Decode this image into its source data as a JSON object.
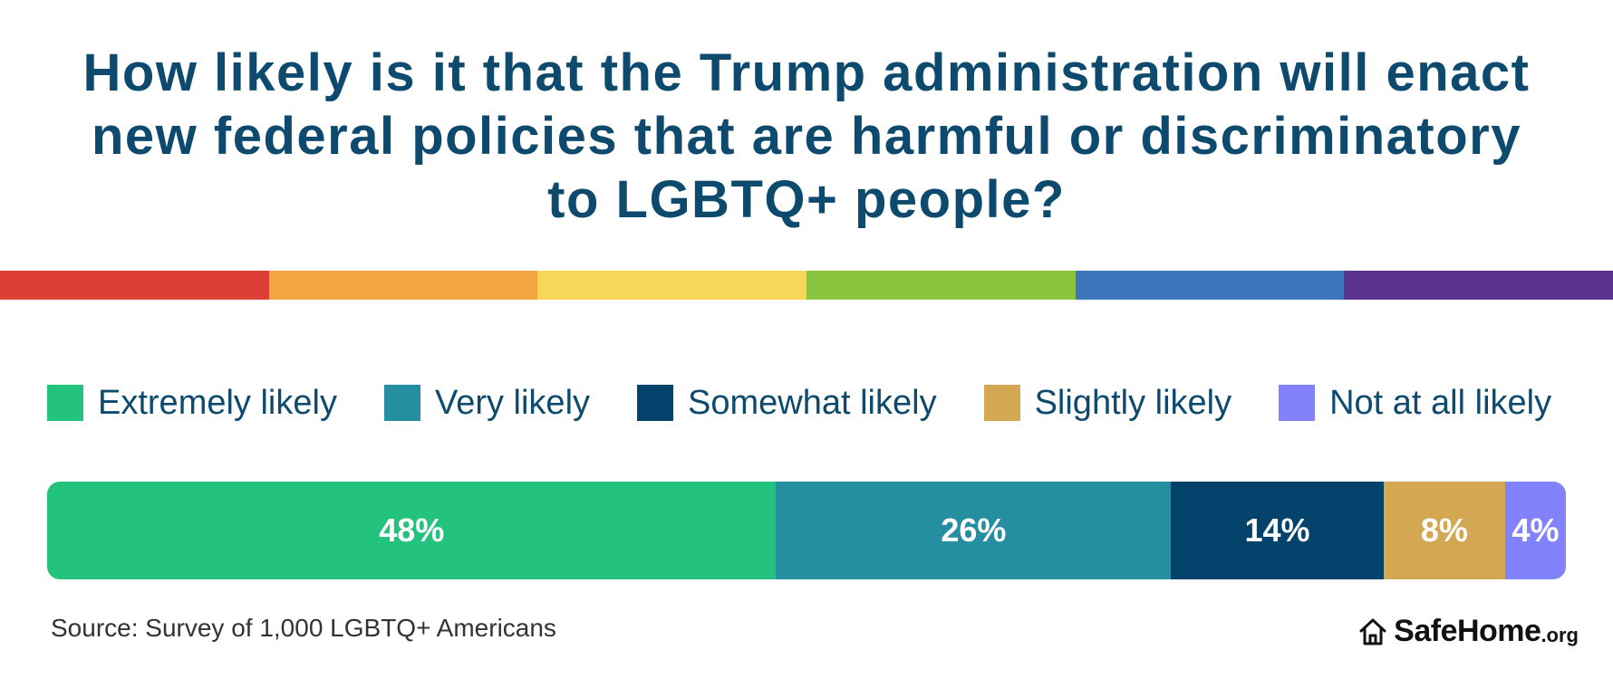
{
  "title_lines": [
    "How likely is it that the Trump administration will enact",
    "new federal policies that are harmful or discriminatory",
    "to LGBTQ+ people?"
  ],
  "rainbow_colors": [
    "#dd3f37",
    "#f2a541",
    "#f7d65a",
    "#8bc43f",
    "#3d76ba",
    "#5d3390"
  ],
  "chart_data": {
    "type": "bar",
    "orientation": "horizontal",
    "stacked": true,
    "title": "How likely is it that the Trump administration will enact new federal policies that are harmful or discriminatory to LGBTQ+ people?",
    "categories": [
      "Extremely likely",
      "Very likely",
      "Somewhat likely",
      "Slightly likely",
      "Not at all likely"
    ],
    "values": [
      48,
      26,
      14,
      8,
      4
    ],
    "value_labels": [
      "48%",
      "26%",
      "14%",
      "8%",
      "4%"
    ],
    "colors": [
      "#23c37e",
      "#258fa1",
      "#02426b",
      "#d4a853",
      "#8283fc"
    ],
    "unit": "%",
    "legend_position": "top",
    "xlabel": "",
    "ylabel": ""
  },
  "source": "Source: Survey of 1,000 LGBTQ+ Americans",
  "logo": {
    "main": "SafeHome",
    "suffix": ".org",
    "icon": "house-icon"
  }
}
